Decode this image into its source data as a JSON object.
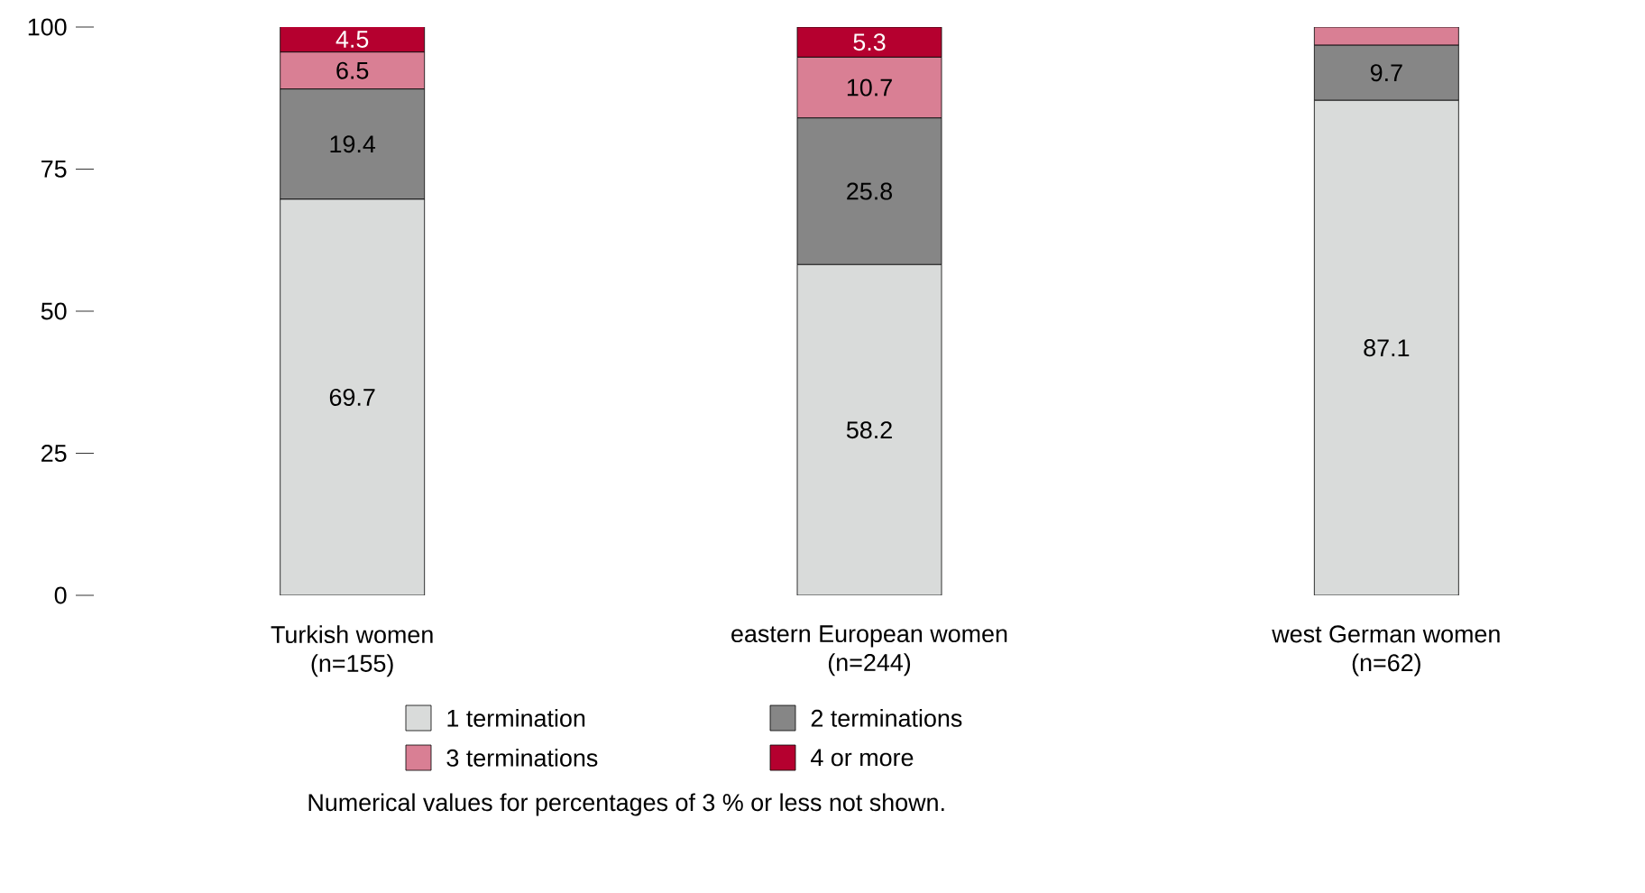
{
  "chart_data": {
    "type": "bar",
    "stacked": true,
    "categories": [
      "Turkish women (n=155)",
      "eastern European women (n=244)",
      "west German women (n=62)"
    ],
    "series": [
      {
        "name": "1 termination",
        "color": "#d9dbda",
        "values": [
          69.7,
          58.2,
          87.1
        ],
        "value_labels": [
          "69.7",
          "58.2",
          "87.1"
        ]
      },
      {
        "name": "2 terminations",
        "color": "#868686",
        "values": [
          19.4,
          25.8,
          9.7
        ],
        "value_labels": [
          "19.4",
          "25.8",
          "9.7"
        ]
      },
      {
        "name": "3 terminations",
        "color": "#d97f94",
        "values": [
          6.5,
          10.7,
          3.2
        ],
        "value_labels": [
          "6.5",
          "10.7",
          null
        ]
      },
      {
        "name": "4 or more",
        "color": "#b5002f",
        "values": [
          4.5,
          5.3,
          0
        ],
        "value_labels": [
          "4.5",
          "5.3",
          null
        ]
      }
    ],
    "ylim": [
      0,
      100
    ],
    "yticks": [
      0,
      25,
      50,
      75,
      100
    ],
    "grid": false,
    "legend": "bottom",
    "annotations": [
      "Numerical values for percentages of 3 % or less not shown."
    ]
  }
}
